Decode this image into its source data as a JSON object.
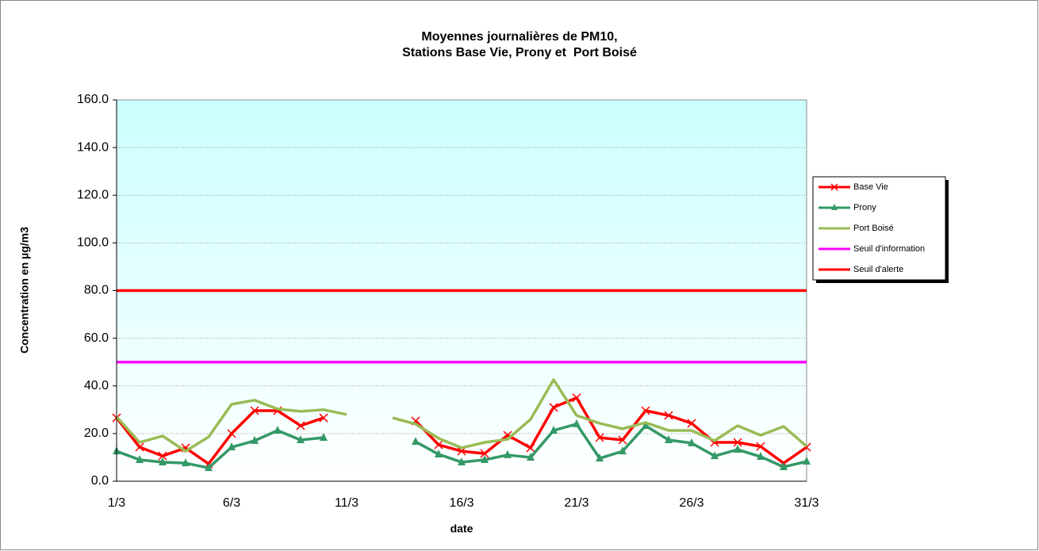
{
  "chart_data": {
    "type": "line",
    "title": [
      "Moyennes journalières de PM10,",
      "Stations Base Vie, Prony et  Port Boisé"
    ],
    "x_label": "date",
    "y_label": "Concentration en µg/m3",
    "categories": [
      "1/3",
      null,
      null,
      null,
      null,
      "6/3",
      null,
      null,
      null,
      null,
      "11/3",
      null,
      null,
      null,
      null,
      "16/3",
      null,
      null,
      null,
      null,
      "21/3",
      null,
      null,
      null,
      null,
      "26/3",
      null,
      null,
      null,
      null,
      "31/3"
    ],
    "ylim": [
      0,
      160
    ],
    "yticks": [
      {
        "value": 0,
        "label": "0.0"
      },
      {
        "value": 20,
        "label": "20.0"
      },
      {
        "value": 40,
        "label": "40.0"
      },
      {
        "value": 60,
        "label": "60.0"
      },
      {
        "value": 80,
        "label": "80.0"
      },
      {
        "value": 100,
        "label": "100.0"
      },
      {
        "value": 120,
        "label": "120.0"
      },
      {
        "value": 140,
        "label": "140.0"
      },
      {
        "value": 160,
        "label": "160.0"
      }
    ],
    "grid": true,
    "legend": "right",
    "series": [
      {
        "name": "Base Vie",
        "color": "#ff0000",
        "marker": "x",
        "values": [
          26.6,
          14.3,
          10.6,
          14,
          7.3,
          20,
          29.6,
          29.6,
          23.3,
          26.6,
          null,
          null,
          null,
          25.3,
          15.3,
          12.6,
          11.6,
          19.3,
          14,
          31,
          35,
          18.3,
          17.3,
          29.6,
          27.6,
          24.3,
          16.3,
          16.3,
          14.6,
          7.6,
          14.3
        ]
      },
      {
        "name": "Prony",
        "color": "#339966",
        "marker": "triangle",
        "values": [
          12.6,
          9,
          8,
          7.6,
          5.6,
          14.3,
          17,
          21.3,
          17.3,
          18.3,
          null,
          null,
          null,
          16.6,
          11.3,
          8,
          9,
          11,
          10,
          21.3,
          24,
          9.6,
          12.6,
          23.3,
          17.3,
          16,
          10.6,
          13.3,
          10.3,
          6,
          8.3
        ]
      },
      {
        "name": "Port Boisé",
        "color": "#99bb55",
        "marker": "none",
        "values": [
          27,
          16.3,
          19,
          12.6,
          18.6,
          32.3,
          34,
          30.3,
          29.3,
          30,
          28,
          null,
          26.6,
          24,
          18,
          14,
          16.3,
          17.6,
          26,
          42.6,
          27.6,
          24.3,
          22,
          24.6,
          21.3,
          21.3,
          17,
          23.3,
          19.3,
          23,
          14.6
        ]
      },
      {
        "name": "Seuil d'information",
        "color": "#ff00ff",
        "marker": "none",
        "values": [
          50,
          50,
          50,
          50,
          50,
          50,
          50,
          50,
          50,
          50,
          50,
          50,
          50,
          50,
          50,
          50,
          50,
          50,
          50,
          50,
          50,
          50,
          50,
          50,
          50,
          50,
          50,
          50,
          50,
          50,
          50
        ]
      },
      {
        "name": "Seuil d'alerte",
        "color": "#ff0000",
        "marker": "none",
        "values": [
          80,
          80,
          80,
          80,
          80,
          80,
          80,
          80,
          80,
          80,
          80,
          80,
          80,
          80,
          80,
          80,
          80,
          80,
          80,
          80,
          80,
          80,
          80,
          80,
          80,
          80,
          80,
          80,
          80,
          80,
          80
        ]
      }
    ]
  }
}
